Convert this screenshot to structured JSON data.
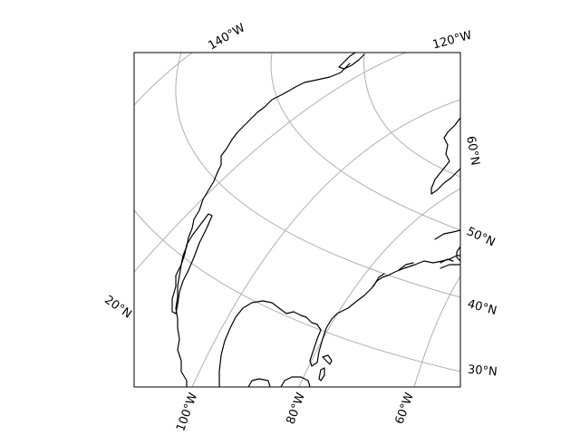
{
  "map": {
    "projection": "conic",
    "gridlines": true,
    "colors": {
      "coastline": "#000000",
      "graticule": "#b0b0b0",
      "frame": "#000000",
      "background": "#ffffff"
    },
    "labels": {
      "lon_140w": "140°W",
      "lon_120w": "120°W",
      "lon_100w": "100°W",
      "lon_80w": "80°W",
      "lon_60w": "60°W",
      "lat_60n": "60°N",
      "lat_50n": "50°N",
      "lat_40n": "40°N",
      "lat_30n": "30°N",
      "lat_20n": "20°N"
    }
  }
}
